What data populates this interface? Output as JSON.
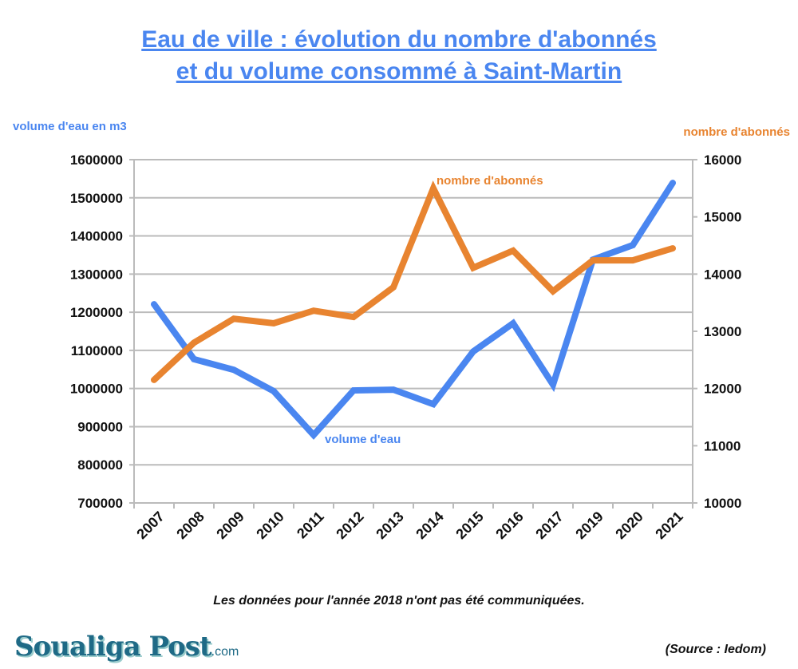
{
  "title_line1": "Eau de ville : évolution du nombre d'abonnés",
  "title_line2": "et du volume consommé à Saint-Martin",
  "note": "Les données pour l'année 2018 n'ont pas été communiquées.",
  "source": "(Source : Iedom)",
  "logo": {
    "name": "Soualiga Post",
    "suffix": ".com"
  },
  "colors": {
    "volume": "#4a86f0",
    "abonnes": "#e88430",
    "grid": "#bbbbbb"
  },
  "chart_data": {
    "type": "line",
    "title": "Eau de ville : évolution du nombre d'abonnés et du volume consommé à Saint-Martin",
    "categories": [
      "2007",
      "2008",
      "2009",
      "2010",
      "2011",
      "2012",
      "2013",
      "2014",
      "2015",
      "2016",
      "2017",
      "2019",
      "2020",
      "2021"
    ],
    "y_left": {
      "label": "volume d'eau en m3",
      "range": [
        700000,
        1600000
      ],
      "ticks": [
        "700000",
        "800000",
        "900000",
        "1000000",
        "1100000",
        "1200000",
        "1300000",
        "1400000",
        "1500000",
        "1600000"
      ]
    },
    "y_right": {
      "label": "nombre d'abonnés",
      "range": [
        10000,
        16000
      ],
      "ticks": [
        "10000",
        "11000",
        "12000",
        "13000",
        "14000",
        "15000",
        "16000"
      ]
    },
    "grid": true,
    "series": [
      {
        "name": "volume d'eau",
        "axis": "left",
        "values": [
          1221000,
          1077000,
          1049000,
          993000,
          878000,
          995000,
          997000,
          959000,
          1097000,
          1171000,
          1010000,
          1338000,
          1376000,
          1539000
        ]
      },
      {
        "name": "nombre d'abonnés",
        "axis": "right",
        "values": [
          12150,
          12800,
          13220,
          13140,
          13360,
          13250,
          13770,
          15500,
          14110,
          14410,
          13700,
          14240,
          14240,
          14450
        ]
      }
    ]
  }
}
